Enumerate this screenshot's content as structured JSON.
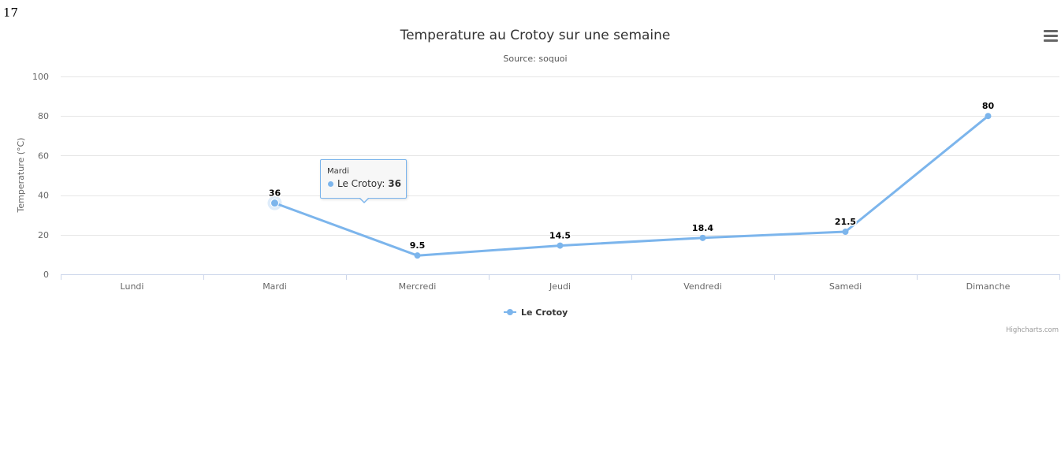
{
  "page_number": "17",
  "chart_data": {
    "type": "line",
    "title": "Temperature au Crotoy sur une semaine",
    "subtitle": "Source: soquoi",
    "xlabel": "",
    "ylabel": "Temperature (°C)",
    "categories": [
      "Lundi",
      "Mardi",
      "Mercredi",
      "Jeudi",
      "Vendredi",
      "Samedi",
      "Dimanche"
    ],
    "ylim": [
      0,
      100
    ],
    "yticks": [
      0,
      20,
      40,
      60,
      80,
      100
    ],
    "grid": true,
    "legend_position": "bottom-center",
    "series": [
      {
        "name": "Le Crotoy",
        "values": [
          null,
          36,
          9.5,
          14.5,
          18.4,
          21.5,
          80
        ],
        "data_labels": [
          "",
          "36",
          "9.5",
          "14.5",
          "18.4",
          "21.5",
          "80"
        ],
        "color": "#7cb5ec"
      }
    ],
    "credits": "Highcharts.com"
  },
  "tooltip": {
    "title": "Mardi",
    "series_name": "Le Crotoy:",
    "value": "36"
  },
  "menu": {
    "icon": "hamburger-menu-icon"
  }
}
